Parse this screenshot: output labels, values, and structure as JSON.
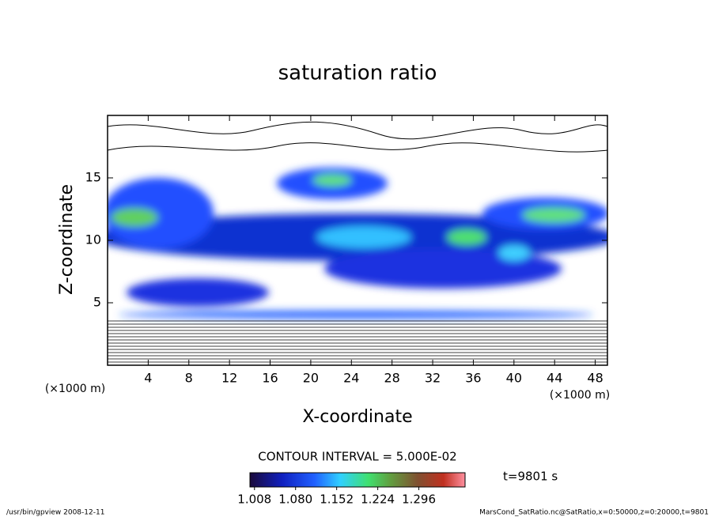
{
  "chart_data": {
    "type": "contour",
    "title": "saturation ratio",
    "x_label": "X-coordinate",
    "y_label": "Z-coordinate",
    "x_unit": "(×1000 m)",
    "xlim": [
      0,
      49.2
    ],
    "xticks": [
      4,
      8,
      12,
      16,
      20,
      24,
      28,
      32,
      36,
      40,
      44,
      48
    ],
    "ylim": [
      0,
      20
    ],
    "yticks": [
      5,
      10,
      15
    ],
    "contour_interval": "CONTOUR INTERVAL = 5.000E-02",
    "time_label": "t=9801 s",
    "colorbar": {
      "clim": [
        1.0,
        1.377
      ],
      "ticks": [
        1.008,
        {
          "value": 1.08,
          "label": "1.080"
        },
        1.152,
        1.224,
        1.296
      ]
    },
    "footer_left": "/usr/bin/gpview   2008-12-11",
    "footer_right": "MarsCond_SatRatio.nc@SatRatio,x=0:50000,z=0:20000,t=9801"
  }
}
